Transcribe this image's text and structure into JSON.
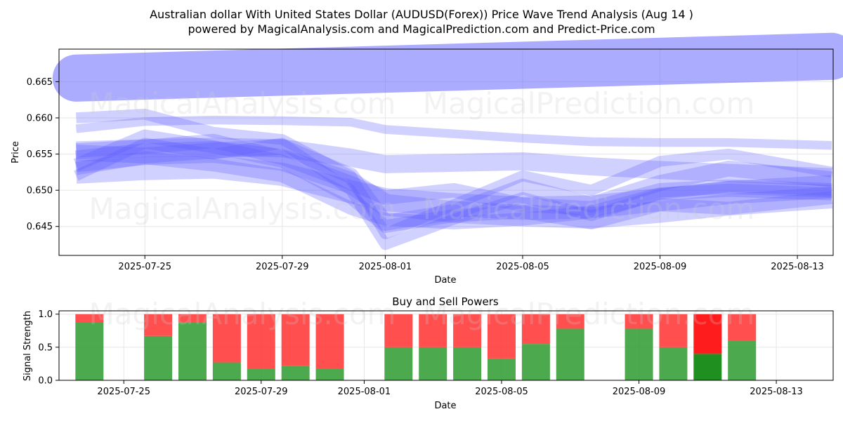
{
  "header": {
    "title_line1": "Australian dollar With United States Dollar (AUDUSD(Forex)) Price Wave Trend Analysis (Aug 14 )",
    "title_line2": "powered by MagicalAnalysis.com and MagicalPrediction.com and Predict-Price.com"
  },
  "watermarks": {
    "left": "MagicalAnalysis.com",
    "right": "MagicalPrediction.com"
  },
  "colors": {
    "wave": "#5a5aff",
    "buy": "#2e9a2e",
    "sell": "#ff3030",
    "buy_strong": "#138a13",
    "sell_strong": "#ff1010",
    "grid": "#e6e6e6"
  },
  "chart_data": [
    {
      "type": "area",
      "title": "",
      "xlabel": "Date",
      "ylabel": "Price",
      "x_ticks": [
        "2025-07-25",
        "2025-07-29",
        "2025-08-01",
        "2025-08-05",
        "2025-08-09",
        "2025-08-13"
      ],
      "y_ticks": [
        "0.645",
        "0.650",
        "0.655",
        "0.660",
        "0.665"
      ],
      "ylim": [
        0.641,
        0.6695
      ],
      "xlim": [
        "2025-07-22T12:00",
        "2025-08-14T01:00"
      ],
      "grid": true,
      "series": [
        {
          "x": [
            "2025-07-23",
            "2025-08-14"
          ],
          "values": [
            0.6655,
            0.6685
          ],
          "width": 0.0065
        },
        {
          "x": [
            "2025-07-23",
            "2025-07-25",
            "2025-07-27",
            "2025-07-29",
            "2025-07-31",
            "2025-08-01",
            "2025-08-03",
            "2025-08-05",
            "2025-08-07",
            "2025-08-09",
            "2025-08-11",
            "2025-08-14"
          ],
          "values": [
            0.6585,
            0.6595,
            0.6597,
            0.6596,
            0.6594,
            0.6584,
            0.6578,
            0.6572,
            0.6567,
            0.6566,
            0.6566,
            0.6562
          ],
          "width": 0.0012
        },
        {
          "x": [
            "2025-07-23",
            "2025-07-25",
            "2025-07-27",
            "2025-07-29",
            "2025-07-31",
            "2025-08-01",
            "2025-08-03",
            "2025-08-05",
            "2025-08-07",
            "2025-08-09",
            "2025-08-11",
            "2025-08-14"
          ],
          "values": [
            0.6555,
            0.6558,
            0.656,
            0.6558,
            0.6545,
            0.6536,
            0.6538,
            0.654,
            0.6533,
            0.6528,
            0.6524,
            0.6518
          ],
          "width": 0.0025
        },
        {
          "x": [
            "2025-07-23",
            "2025-07-25",
            "2025-07-27",
            "2025-07-29",
            "2025-07-31",
            "2025-08-01",
            "2025-08-03",
            "2025-08-05",
            "2025-08-07",
            "2025-08-09",
            "2025-08-11",
            "2025-08-14"
          ],
          "values": [
            0.6525,
            0.653,
            0.6532,
            0.6522,
            0.6498,
            0.6487,
            0.648,
            0.6475,
            0.6477,
            0.6487,
            0.6497,
            0.6505
          ],
          "width": 0.0032
        },
        {
          "x": [
            "2025-07-23",
            "2025-07-25",
            "2025-07-27",
            "2025-07-29",
            "2025-07-31",
            "2025-08-01",
            "2025-08-03",
            "2025-08-05",
            "2025-08-07",
            "2025-08-09",
            "2025-08-11",
            "2025-08-14"
          ],
          "values": [
            0.654,
            0.655,
            0.6553,
            0.6542,
            0.651,
            0.648,
            0.647,
            0.6465,
            0.6462,
            0.647,
            0.648,
            0.649
          ],
          "width": 0.003
        },
        {
          "x": [
            "2025-07-23",
            "2025-07-25",
            "2025-07-27",
            "2025-07-29",
            "2025-07-31",
            "2025-08-01",
            "2025-08-03",
            "2025-08-05",
            "2025-08-07",
            "2025-08-09",
            "2025-08-11",
            "2025-08-14"
          ],
          "values": [
            0.6552,
            0.6548,
            0.6555,
            0.656,
            0.652,
            0.6455,
            0.647,
            0.6505,
            0.648,
            0.651,
            0.653,
            0.6515
          ],
          "width": 0.0022
        },
        {
          "x": [
            "2025-07-23",
            "2025-07-25",
            "2025-07-27",
            "2025-07-29",
            "2025-07-31",
            "2025-08-01",
            "2025-08-03",
            "2025-08-05",
            "2025-08-07",
            "2025-08-09",
            "2025-08-11",
            "2025-08-14"
          ],
          "values": [
            0.66,
            0.6605,
            0.658,
            0.657,
            0.652,
            0.644,
            0.648,
            0.652,
            0.65,
            0.654,
            0.655,
            0.6525
          ],
          "width": 0.0015
        },
        {
          "x": [
            "2025-07-23",
            "2025-07-25",
            "2025-07-27",
            "2025-07-29",
            "2025-07-31",
            "2025-08-01",
            "2025-08-03",
            "2025-08-05",
            "2025-08-07",
            "2025-08-09",
            "2025-08-11",
            "2025-08-14"
          ],
          "values": [
            0.652,
            0.6565,
            0.655,
            0.6565,
            0.65,
            0.6425,
            0.646,
            0.649,
            0.6465,
            0.6495,
            0.6505,
            0.65
          ],
          "width": 0.0015
        },
        {
          "x": [
            "2025-07-23",
            "2025-07-25",
            "2025-07-27",
            "2025-07-29",
            "2025-07-31",
            "2025-08-01",
            "2025-08-03",
            "2025-08-05",
            "2025-08-07",
            "2025-08-09",
            "2025-08-11",
            "2025-08-14"
          ],
          "values": [
            0.6535,
            0.6575,
            0.656,
            0.654,
            0.649,
            0.645,
            0.6465,
            0.647,
            0.6455,
            0.648,
            0.6475,
            0.649
          ],
          "width": 0.0018
        },
        {
          "x": [
            "2025-07-23",
            "2025-07-25",
            "2025-07-27",
            "2025-07-29",
            "2025-07-31",
            "2025-08-01",
            "2025-08-03",
            "2025-08-05",
            "2025-08-07",
            "2025-08-09",
            "2025-08-11",
            "2025-08-14"
          ],
          "values": [
            0.6555,
            0.656,
            0.6568,
            0.6545,
            0.651,
            0.649,
            0.65,
            0.648,
            0.6475,
            0.65,
            0.6505,
            0.65
          ],
          "width": 0.002
        },
        {
          "x": [
            "2025-07-23",
            "2025-07-25",
            "2025-07-27",
            "2025-07-29",
            "2025-07-31",
            "2025-08-01",
            "2025-08-03",
            "2025-08-05",
            "2025-08-07",
            "2025-08-09",
            "2025-08-11",
            "2025-08-14"
          ],
          "values": [
            0.653,
            0.6545,
            0.6535,
            0.652,
            0.6475,
            0.646,
            0.6455,
            0.646,
            0.647,
            0.6495,
            0.65,
            0.6495
          ],
          "width": 0.0018
        }
      ]
    },
    {
      "type": "bar",
      "title": "Buy and Sell Powers",
      "xlabel": "Date",
      "ylabel": "Signal Strength",
      "x_ticks": [
        "2025-07-25",
        "2025-07-29",
        "2025-08-01",
        "2025-08-05",
        "2025-08-09",
        "2025-08-13"
      ],
      "y_ticks": [
        "0.0",
        "0.5",
        "1.0"
      ],
      "ylim": [
        0,
        1.05
      ],
      "grid": true,
      "categories": [
        "2025-07-24",
        "2025-07-26",
        "2025-07-27",
        "2025-07-28",
        "2025-07-29",
        "2025-07-30",
        "2025-07-31",
        "2025-08-02",
        "2025-08-03",
        "2025-08-04",
        "2025-08-05",
        "2025-08-06",
        "2025-08-07",
        "2025-08-09",
        "2025-08-10",
        "2025-08-11",
        "2025-08-12"
      ],
      "series": [
        {
          "name": "buy",
          "values": [
            0.88,
            0.67,
            0.88,
            0.27,
            0.17,
            0.22,
            0.17,
            0.5,
            0.5,
            0.5,
            0.33,
            0.55,
            0.78,
            0.78,
            0.5,
            0.4,
            0.6
          ]
        },
        {
          "name": "sell",
          "values": [
            0.12,
            0.33,
            0.12,
            0.73,
            0.83,
            0.78,
            0.83,
            0.5,
            0.5,
            0.5,
            0.67,
            0.45,
            0.22,
            0.22,
            0.5,
            0.6,
            0.4
          ]
        }
      ],
      "highlight_category": "2025-08-11"
    }
  ]
}
